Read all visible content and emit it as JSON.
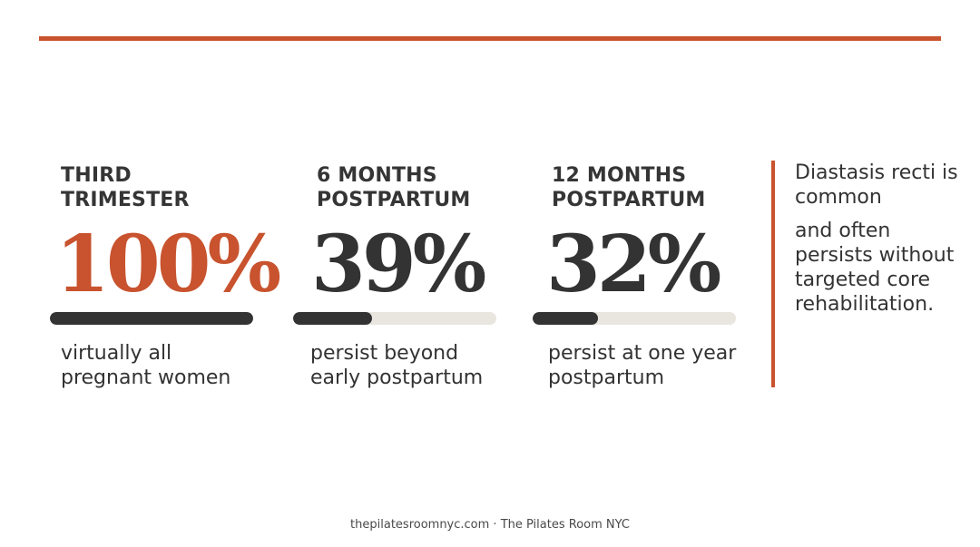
{
  "colors": {
    "accent": "#c8532e",
    "dark": "#333333",
    "track": "#e9e6e0"
  },
  "stats": [
    {
      "label": "THIRD TRIMESTER",
      "value": "100%",
      "progress": 1.0,
      "description_lines": [
        "virtually all",
        "pregnant women"
      ]
    },
    {
      "label": "6 MONTHS POSTPARTUM",
      "value": "39%",
      "progress": 0.39,
      "description_lines": [
        "persist beyond",
        "early postpartum"
      ]
    },
    {
      "label": "12 MONTHS POSTPARTUM",
      "value": "32%",
      "progress": 0.32,
      "description_lines": [
        "persist at one year",
        "postpartum"
      ]
    }
  ],
  "aside": {
    "headline": "Diastasis recti is common",
    "body": "and often persists without targeted core rehabilitation."
  },
  "footer": {
    "text": "thepilatesroomnyc.com · The Pilates Room NYC"
  }
}
